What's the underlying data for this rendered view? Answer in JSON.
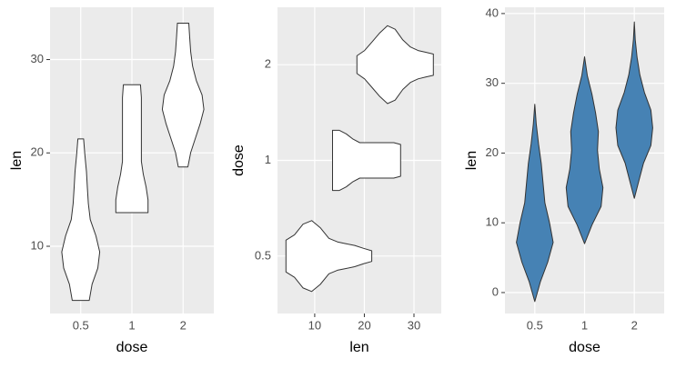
{
  "chart_data": [
    {
      "type": "violin",
      "horizontal": false,
      "xlabel": "dose",
      "ylabel": "len",
      "categories": [
        "0.5",
        "1",
        "2"
      ],
      "fill": "#ffffff",
      "outline": "#333333",
      "ylim": [
        2.8,
        35.6
      ],
      "yticks": [
        10,
        20,
        30
      ],
      "grid": true,
      "violins": [
        {
          "min": 4.2,
          "max": 21.5,
          "widths": [
            0.45,
            0.6,
            0.9,
            1.0,
            0.8,
            0.5,
            0.4,
            0.35,
            0.3,
            0.22,
            0.15
          ]
        },
        {
          "min": 13.6,
          "max": 27.3,
          "widths": [
            0.85,
            0.85,
            0.75,
            0.6,
            0.5,
            0.5,
            0.5,
            0.5,
            0.5,
            0.5,
            0.45
          ]
        },
        {
          "min": 18.5,
          "max": 33.9,
          "widths": [
            0.25,
            0.4,
            0.65,
            0.9,
            1.1,
            1.0,
            0.7,
            0.5,
            0.4,
            0.35,
            0.3
          ]
        }
      ]
    },
    {
      "type": "violin",
      "horizontal": true,
      "xlabel": "len",
      "ylabel": "dose",
      "categories": [
        "0.5",
        "1",
        "2"
      ],
      "fill": "#ffffff",
      "outline": "#333333",
      "xlim": [
        2.5,
        35.5
      ],
      "xticks": [
        10,
        20,
        30
      ],
      "grid": true,
      "violins": [
        {
          "min": 4.2,
          "max": 21.5,
          "widths": [
            0.45,
            0.6,
            0.9,
            1.0,
            0.8,
            0.5,
            0.4,
            0.35,
            0.3,
            0.22,
            0.15
          ]
        },
        {
          "min": 13.6,
          "max": 27.3,
          "widths": [
            0.85,
            0.85,
            0.75,
            0.6,
            0.5,
            0.5,
            0.5,
            0.5,
            0.5,
            0.5,
            0.45
          ]
        },
        {
          "min": 18.5,
          "max": 33.9,
          "widths": [
            0.25,
            0.4,
            0.65,
            0.9,
            1.1,
            1.0,
            0.7,
            0.5,
            0.4,
            0.35,
            0.3
          ]
        }
      ]
    },
    {
      "type": "violin",
      "horizontal": false,
      "xlabel": "dose",
      "ylabel": "len",
      "categories": [
        "0.5",
        "1",
        "2"
      ],
      "fill": "#4682b4",
      "outline": "#333333",
      "ylim": [
        -3.0,
        40.9
      ],
      "yticks": [
        0,
        10,
        20,
        30,
        40
      ],
      "grid": true,
      "violins": [
        {
          "min": -1.3,
          "max": 27,
          "widths": [
            0,
            0.3,
            0.7,
            1.0,
            0.8,
            0.55,
            0.45,
            0.35,
            0.2,
            0.08,
            0
          ]
        },
        {
          "min": 7,
          "max": 33.8,
          "widths": [
            0,
            0.4,
            0.9,
            1.0,
            0.8,
            0.7,
            0.75,
            0.6,
            0.4,
            0.15,
            0
          ]
        },
        {
          "min": 13.5,
          "max": 38.8,
          "widths": [
            0,
            0.25,
            0.5,
            0.9,
            1.0,
            0.9,
            0.55,
            0.3,
            0.15,
            0.05,
            0
          ]
        }
      ]
    }
  ]
}
